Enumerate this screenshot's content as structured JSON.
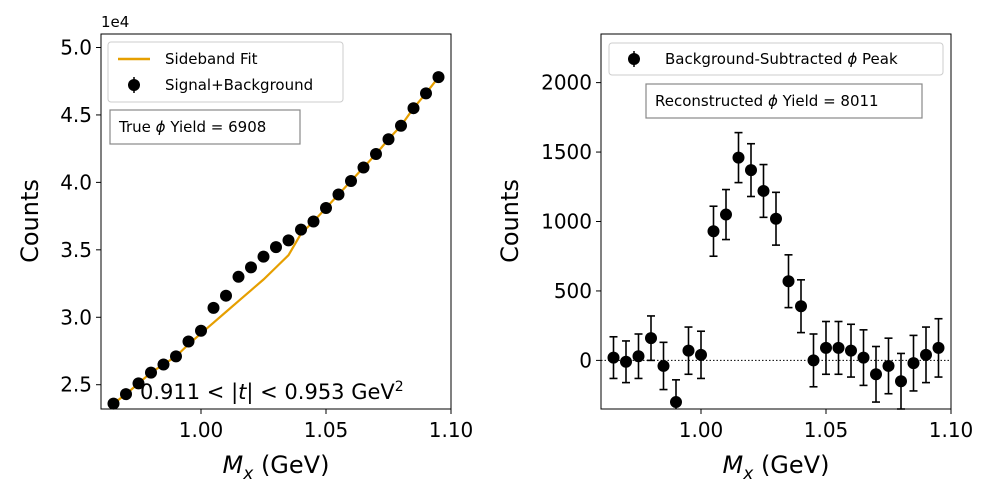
{
  "chart_data": [
    {
      "type": "scatter",
      "panel": "left",
      "xlabel_math": "M",
      "xlabel_sub": "x",
      "xlabel_unit": " (GeV)",
      "ylabel": "Counts",
      "offset_text": "1e4",
      "xlim": [
        0.96,
        1.1
      ],
      "ylim": [
        2.32,
        5.1
      ],
      "xticks": [
        1.0,
        1.05,
        1.1
      ],
      "xtick_labels": [
        "1.00",
        "1.05",
        "1.10"
      ],
      "yticks": [
        2.5,
        3.0,
        3.5,
        4.0,
        4.5,
        5.0
      ],
      "ytick_labels": [
        "2.5",
        "3.0",
        "3.5",
        "4.0",
        "4.5",
        "5.0"
      ],
      "legend": {
        "fit_label": "Sideband Fit",
        "data_label": "Signal+Background",
        "placement": "top-left"
      },
      "yield_box": {
        "prefix": "True ",
        "symbol": "ϕ",
        "suffix": " Yield = 6908"
      },
      "t_range": {
        "low": "0.911",
        "var": "t",
        "high": "0.953",
        "unit": "GeV",
        "power": "2"
      },
      "fit_color": "#e69f00",
      "points": {
        "x": [
          0.965,
          0.97,
          0.975,
          0.98,
          0.985,
          0.99,
          0.995,
          1.0,
          1.005,
          1.01,
          1.015,
          1.02,
          1.025,
          1.03,
          1.035,
          1.04,
          1.045,
          1.05,
          1.055,
          1.06,
          1.065,
          1.07,
          1.075,
          1.08,
          1.085,
          1.09,
          1.095
        ],
        "y": [
          2.36,
          2.43,
          2.51,
          2.59,
          2.65,
          2.71,
          2.82,
          2.9,
          3.07,
          3.16,
          3.3,
          3.37,
          3.45,
          3.52,
          3.57,
          3.65,
          3.71,
          3.81,
          3.91,
          4.01,
          4.11,
          4.21,
          4.32,
          4.42,
          4.55,
          4.66,
          4.78
        ]
      },
      "fit": {
        "x": [
          0.965,
          0.97,
          0.975,
          0.98,
          0.985,
          0.99,
          0.995,
          1.0,
          1.005,
          1.01,
          1.015,
          1.02,
          1.025,
          1.03,
          1.035,
          1.04,
          1.045,
          1.05,
          1.055,
          1.06,
          1.065,
          1.07,
          1.075,
          1.08,
          1.085,
          1.09,
          1.095
        ],
        "y": [
          2.36,
          2.43,
          2.51,
          2.59,
          2.65,
          2.71,
          2.8,
          2.88,
          2.96,
          3.04,
          3.12,
          3.2,
          3.28,
          3.37,
          3.46,
          3.62,
          3.71,
          3.81,
          3.91,
          4.01,
          4.11,
          4.21,
          4.32,
          4.42,
          4.55,
          4.66,
          4.78
        ]
      }
    },
    {
      "type": "scatter",
      "panel": "right",
      "xlabel_math": "M",
      "xlabel_sub": "x",
      "xlabel_unit": " (GeV)",
      "ylabel": "Counts",
      "xlim": [
        0.96,
        1.1
      ],
      "ylim": [
        -350,
        2350
      ],
      "xticks": [
        1.0,
        1.05,
        1.1
      ],
      "xtick_labels": [
        "1.00",
        "1.05",
        "1.10"
      ],
      "yticks": [
        0,
        500,
        1000,
        1500,
        2000
      ],
      "ytick_labels": [
        "0",
        "500",
        "1000",
        "1500",
        "2000"
      ],
      "legend": {
        "data_label_prefix": "Background-Subtracted ",
        "data_label_symbol": "ϕ",
        "data_label_suffix": " Peak",
        "placement": "top"
      },
      "yield_box": {
        "prefix": "Reconstructed ",
        "symbol": "ϕ",
        "suffix": " Yield = 8011"
      },
      "zero_line": true,
      "points": {
        "x": [
          0.965,
          0.97,
          0.975,
          0.98,
          0.985,
          0.99,
          0.995,
          1.0,
          1.005,
          1.01,
          1.015,
          1.02,
          1.025,
          1.03,
          1.035,
          1.04,
          1.045,
          1.05,
          1.055,
          1.06,
          1.065,
          1.07,
          1.075,
          1.08,
          1.085,
          1.09,
          1.095
        ],
        "y": [
          20,
          -10,
          30,
          160,
          -40,
          -300,
          70,
          40,
          930,
          1050,
          1460,
          1370,
          1220,
          1020,
          570,
          390,
          0,
          90,
          90,
          70,
          20,
          -100,
          -40,
          -150,
          -20,
          40,
          90
        ],
        "err": [
          150,
          150,
          160,
          160,
          170,
          160,
          170,
          170,
          180,
          180,
          180,
          190,
          190,
          190,
          190,
          190,
          190,
          190,
          190,
          190,
          200,
          200,
          200,
          200,
          200,
          200,
          210
        ]
      }
    }
  ]
}
